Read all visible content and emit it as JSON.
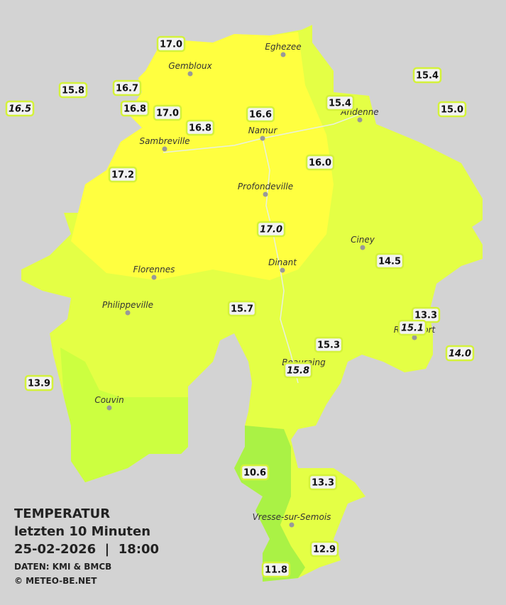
{
  "legend": {
    "title": "TEMPERATUR",
    "period": "letzten 10 Minuten",
    "datetime": "25-02-2026  |  18:00",
    "source": "DATEN: KMI & BMCB",
    "copyright": "© METEO-BE.NET"
  },
  "cities": [
    "Eghezee",
    "Gembloux",
    "Andenne",
    "Sambreville",
    "Namur",
    "Profondeville",
    "Ciney",
    "Florennes",
    "Dinant",
    "Philippeville",
    "Rochefort",
    "Beauraing",
    "Couvin",
    "Vresse-sur-Semois"
  ],
  "stations": [
    {
      "label": "17.0",
      "italic": false
    },
    {
      "label": "15.8",
      "italic": false
    },
    {
      "label": "16.7",
      "italic": false
    },
    {
      "label": "16.5",
      "italic": true
    },
    {
      "label": "16.8",
      "italic": false
    },
    {
      "label": "17.0",
      "italic": false
    },
    {
      "label": "16.6",
      "italic": false
    },
    {
      "label": "16.8",
      "italic": false
    },
    {
      "label": "15.4",
      "italic": false
    },
    {
      "label": "15.4",
      "italic": false
    },
    {
      "label": "15.0",
      "italic": false
    },
    {
      "label": "17.2",
      "italic": false
    },
    {
      "label": "16.0",
      "italic": false
    },
    {
      "label": "17.0",
      "italic": true
    },
    {
      "label": "14.5",
      "italic": false
    },
    {
      "label": "15.7",
      "italic": false
    },
    {
      "label": "13.3",
      "italic": false
    },
    {
      "label": "15.1",
      "italic": true
    },
    {
      "label": "15.3",
      "italic": false
    },
    {
      "label": "14.0",
      "italic": true
    },
    {
      "label": "15.8",
      "italic": true
    },
    {
      "label": "13.9",
      "italic": false
    },
    {
      "label": "10.6",
      "italic": false
    },
    {
      "label": "13.3",
      "italic": false
    },
    {
      "label": "12.9",
      "italic": false
    },
    {
      "label": "11.8",
      "italic": false
    }
  ]
}
